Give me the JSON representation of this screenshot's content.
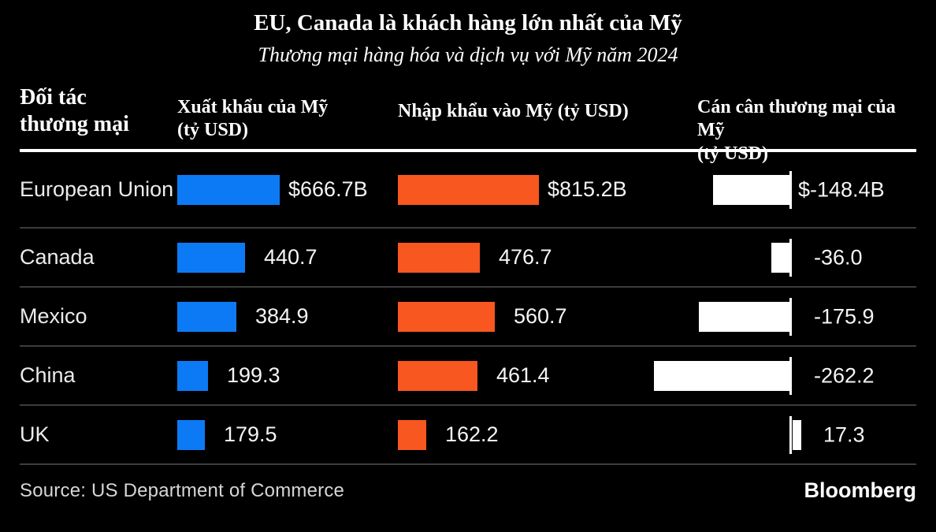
{
  "title": "EU, Canada là khách hàng lớn nhất của Mỹ",
  "subtitle": "Thương mại hàng hóa và dịch vụ với Mỹ năm 2024",
  "headers": {
    "partner": [
      "Đối tác",
      "thương mại"
    ],
    "exports": [
      "Xuất khẩu của Mỹ",
      "(tỷ USD)"
    ],
    "imports": [
      "Nhập khẩu vào Mỹ (tỷ USD)"
    ],
    "balance": [
      "Cán cân thương mại của Mỹ",
      "(tỷ USD)"
    ]
  },
  "chart_data": {
    "type": "bar",
    "unit": "tỷ USD",
    "categories": [
      "European Union",
      "Canada",
      "Mexico",
      "China",
      "UK"
    ],
    "series": [
      {
        "name": "Xuất khẩu của Mỹ (tỷ USD)",
        "color": "#0d7af5",
        "values": [
          666.7,
          440.7,
          384.9,
          199.3,
          179.5
        ],
        "labels": [
          "$666.7B",
          "440.7",
          "384.9",
          "199.3",
          "179.5"
        ]
      },
      {
        "name": "Nhập khẩu vào Mỹ (tỷ USD)",
        "color": "#f8571f",
        "values": [
          815.2,
          476.7,
          560.7,
          461.4,
          162.2
        ],
        "labels": [
          "$815.2B",
          "476.7",
          "560.7",
          "461.4",
          "162.2"
        ]
      },
      {
        "name": "Cán cân thương mại của Mỹ (tỷ USD)",
        "color": "#ffffff",
        "values": [
          -148.4,
          -36.0,
          -175.9,
          -262.2,
          17.3
        ],
        "labels": [
          "$-148.4B",
          "-36.0",
          "-175.9",
          "-262.2",
          "17.3"
        ]
      }
    ],
    "layout": {
      "grid": "off",
      "legend": "none",
      "bar_orientation": "horizontal",
      "balance_axis": "zero line shown as white tick, negative bars extend left"
    }
  },
  "colors": {
    "background": "#000000",
    "export_bar": "#0d7af5",
    "import_bar": "#f8571f",
    "balance_bar": "#ffffff",
    "header_rule": "#ffffff",
    "row_separator": "#3c3c3c"
  },
  "footer": {
    "source": "Source: US Department of Commerce",
    "brand": "Bloomberg"
  }
}
